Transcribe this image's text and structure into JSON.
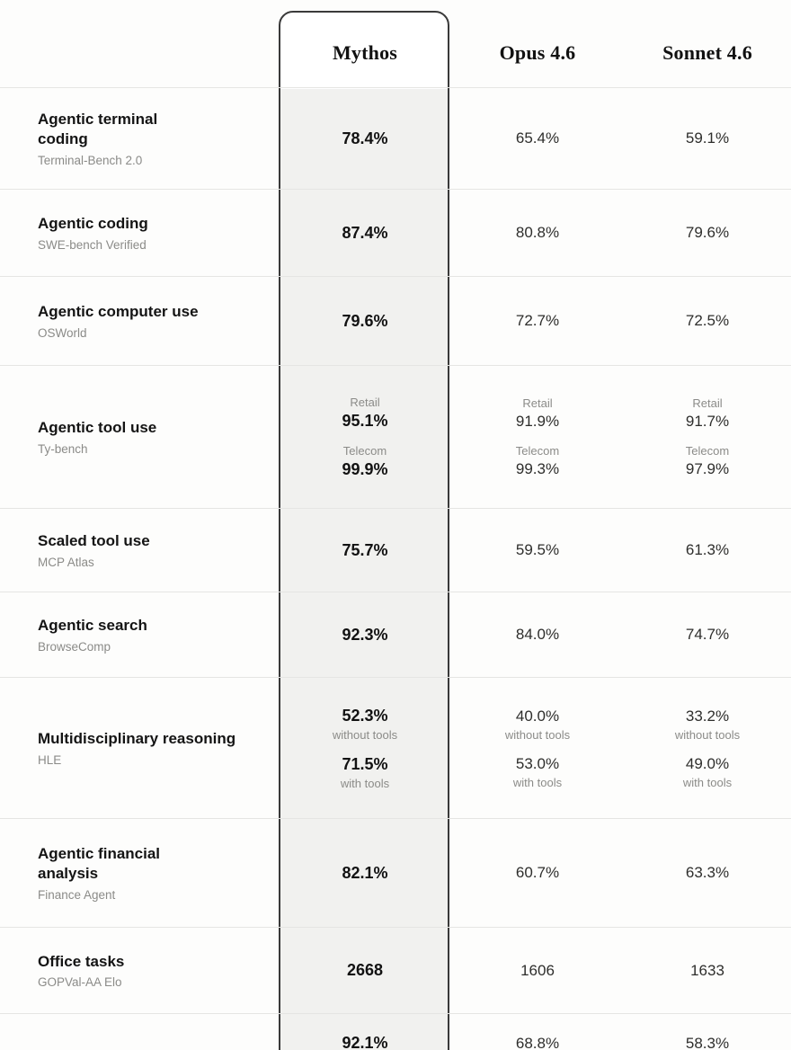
{
  "table": {
    "columns": [
      {
        "label": "Mythos",
        "highlighted": true
      },
      {
        "label": "Opus 4.6",
        "highlighted": false
      },
      {
        "label": "Sonnet 4.6",
        "highlighted": false
      }
    ],
    "rows": [
      {
        "task": "Agentic terminal\ncoding",
        "benchmark": "Terminal-Bench 2.0",
        "cells": [
          [
            {
              "value": "78.4%"
            }
          ],
          [
            {
              "value": "65.4%"
            }
          ],
          [
            {
              "value": "59.1%"
            }
          ]
        ]
      },
      {
        "task": "Agentic coding",
        "benchmark": "SWE-bench Verified",
        "cells": [
          [
            {
              "value": "87.4%"
            }
          ],
          [
            {
              "value": "80.8%"
            }
          ],
          [
            {
              "value": "79.6%"
            }
          ]
        ]
      },
      {
        "task": "Agentic computer use",
        "benchmark": "OSWorld",
        "cells": [
          [
            {
              "value": "79.6%"
            }
          ],
          [
            {
              "value": "72.7%"
            }
          ],
          [
            {
              "value": "72.5%"
            }
          ]
        ]
      },
      {
        "task": "Agentic tool use",
        "benchmark": "Ty-bench",
        "cells": [
          [
            {
              "caption": "Retail",
              "value": "95.1%"
            },
            {
              "caption": "Telecom",
              "value": "99.9%"
            }
          ],
          [
            {
              "caption": "Retail",
              "value": "91.9%"
            },
            {
              "caption": "Telecom",
              "value": "99.3%"
            }
          ],
          [
            {
              "caption": "Retail",
              "value": "91.7%"
            },
            {
              "caption": "Telecom",
              "value": "97.9%"
            }
          ]
        ]
      },
      {
        "task": "Scaled tool use",
        "benchmark": "MCP Atlas",
        "cells": [
          [
            {
              "value": "75.7%"
            }
          ],
          [
            {
              "value": "59.5%"
            }
          ],
          [
            {
              "value": "61.3%"
            }
          ]
        ]
      },
      {
        "task": "Agentic search",
        "benchmark": "BrowseComp",
        "cells": [
          [
            {
              "value": "92.3%"
            }
          ],
          [
            {
              "value": "84.0%"
            }
          ],
          [
            {
              "value": "74.7%"
            }
          ]
        ]
      },
      {
        "task": "Multidisciplinary reasoning",
        "benchmark": "HLE",
        "cells": [
          [
            {
              "value": "52.3%",
              "note": "without tools"
            },
            {
              "value": "71.5%",
              "note": "with tools"
            }
          ],
          [
            {
              "value": "40.0%",
              "note": "without tools"
            },
            {
              "value": "53.0%",
              "note": "with tools"
            }
          ],
          [
            {
              "value": "33.2%",
              "note": "without tools"
            },
            {
              "value": "49.0%",
              "note": "with tools"
            }
          ]
        ]
      },
      {
        "task": "Agentic financial\nanalysis",
        "benchmark": "Finance Agent",
        "cells": [
          [
            {
              "value": "82.1%"
            }
          ],
          [
            {
              "value": "60.7%"
            }
          ],
          [
            {
              "value": "63.3%"
            }
          ]
        ]
      },
      {
        "task": "Office tasks",
        "benchmark": "GOPVal-AA Elo",
        "cells": [
          [
            {
              "value": "2668"
            }
          ],
          [
            {
              "value": "1606"
            }
          ],
          [
            {
              "value": "1633"
            }
          ]
        ]
      },
      {
        "task": "",
        "benchmark": "",
        "cells": [
          [
            {
              "value": "92.1%"
            }
          ],
          [
            {
              "value": "68.8%"
            }
          ],
          [
            {
              "value": "58.3%"
            }
          ]
        ]
      }
    ]
  },
  "colors": {
    "card_border": "#3a3a3a",
    "card_body": "#f1f1ef",
    "divider": "#e5e5e3",
    "muted_text": "#8b8b88",
    "primary_text": "#141414"
  },
  "chart_data": {
    "type": "table",
    "title": "",
    "columns": [
      "Mythos",
      "Opus 4.6",
      "Sonnet 4.6"
    ],
    "highlighted_column": "Mythos",
    "rows": [
      {
        "task": "Agentic terminal coding",
        "benchmark": "Terminal-Bench 2.0",
        "unit": "%",
        "values": [
          78.4,
          65.4,
          59.1
        ]
      },
      {
        "task": "Agentic coding",
        "benchmark": "SWE-bench Verified",
        "unit": "%",
        "values": [
          87.4,
          80.8,
          79.6
        ]
      },
      {
        "task": "Agentic computer use",
        "benchmark": "OSWorld",
        "unit": "%",
        "values": [
          79.6,
          72.7,
          72.5
        ]
      },
      {
        "task": "Agentic tool use",
        "benchmark": "Ty-bench",
        "unit": "%",
        "subscores": {
          "Retail": [
            95.1,
            91.9,
            91.7
          ],
          "Telecom": [
            99.9,
            99.3,
            97.9
          ]
        }
      },
      {
        "task": "Scaled tool use",
        "benchmark": "MCP Atlas",
        "unit": "%",
        "values": [
          75.7,
          59.5,
          61.3
        ]
      },
      {
        "task": "Agentic search",
        "benchmark": "BrowseComp",
        "unit": "%",
        "values": [
          92.3,
          84.0,
          74.7
        ]
      },
      {
        "task": "Multidisciplinary reasoning",
        "benchmark": "HLE",
        "unit": "%",
        "subscores": {
          "without tools": [
            52.3,
            40.0,
            33.2
          ],
          "with tools": [
            71.5,
            53.0,
            49.0
          ]
        }
      },
      {
        "task": "Agentic financial analysis",
        "benchmark": "Finance Agent",
        "unit": "%",
        "values": [
          82.1,
          60.7,
          63.3
        ]
      },
      {
        "task": "Office tasks",
        "benchmark": "GOPVal-AA Elo",
        "unit": "Elo",
        "values": [
          2668,
          1606,
          1633
        ]
      },
      {
        "task": "",
        "benchmark": "",
        "unit": "%",
        "values": [
          92.1,
          68.8,
          58.3
        ]
      }
    ]
  }
}
